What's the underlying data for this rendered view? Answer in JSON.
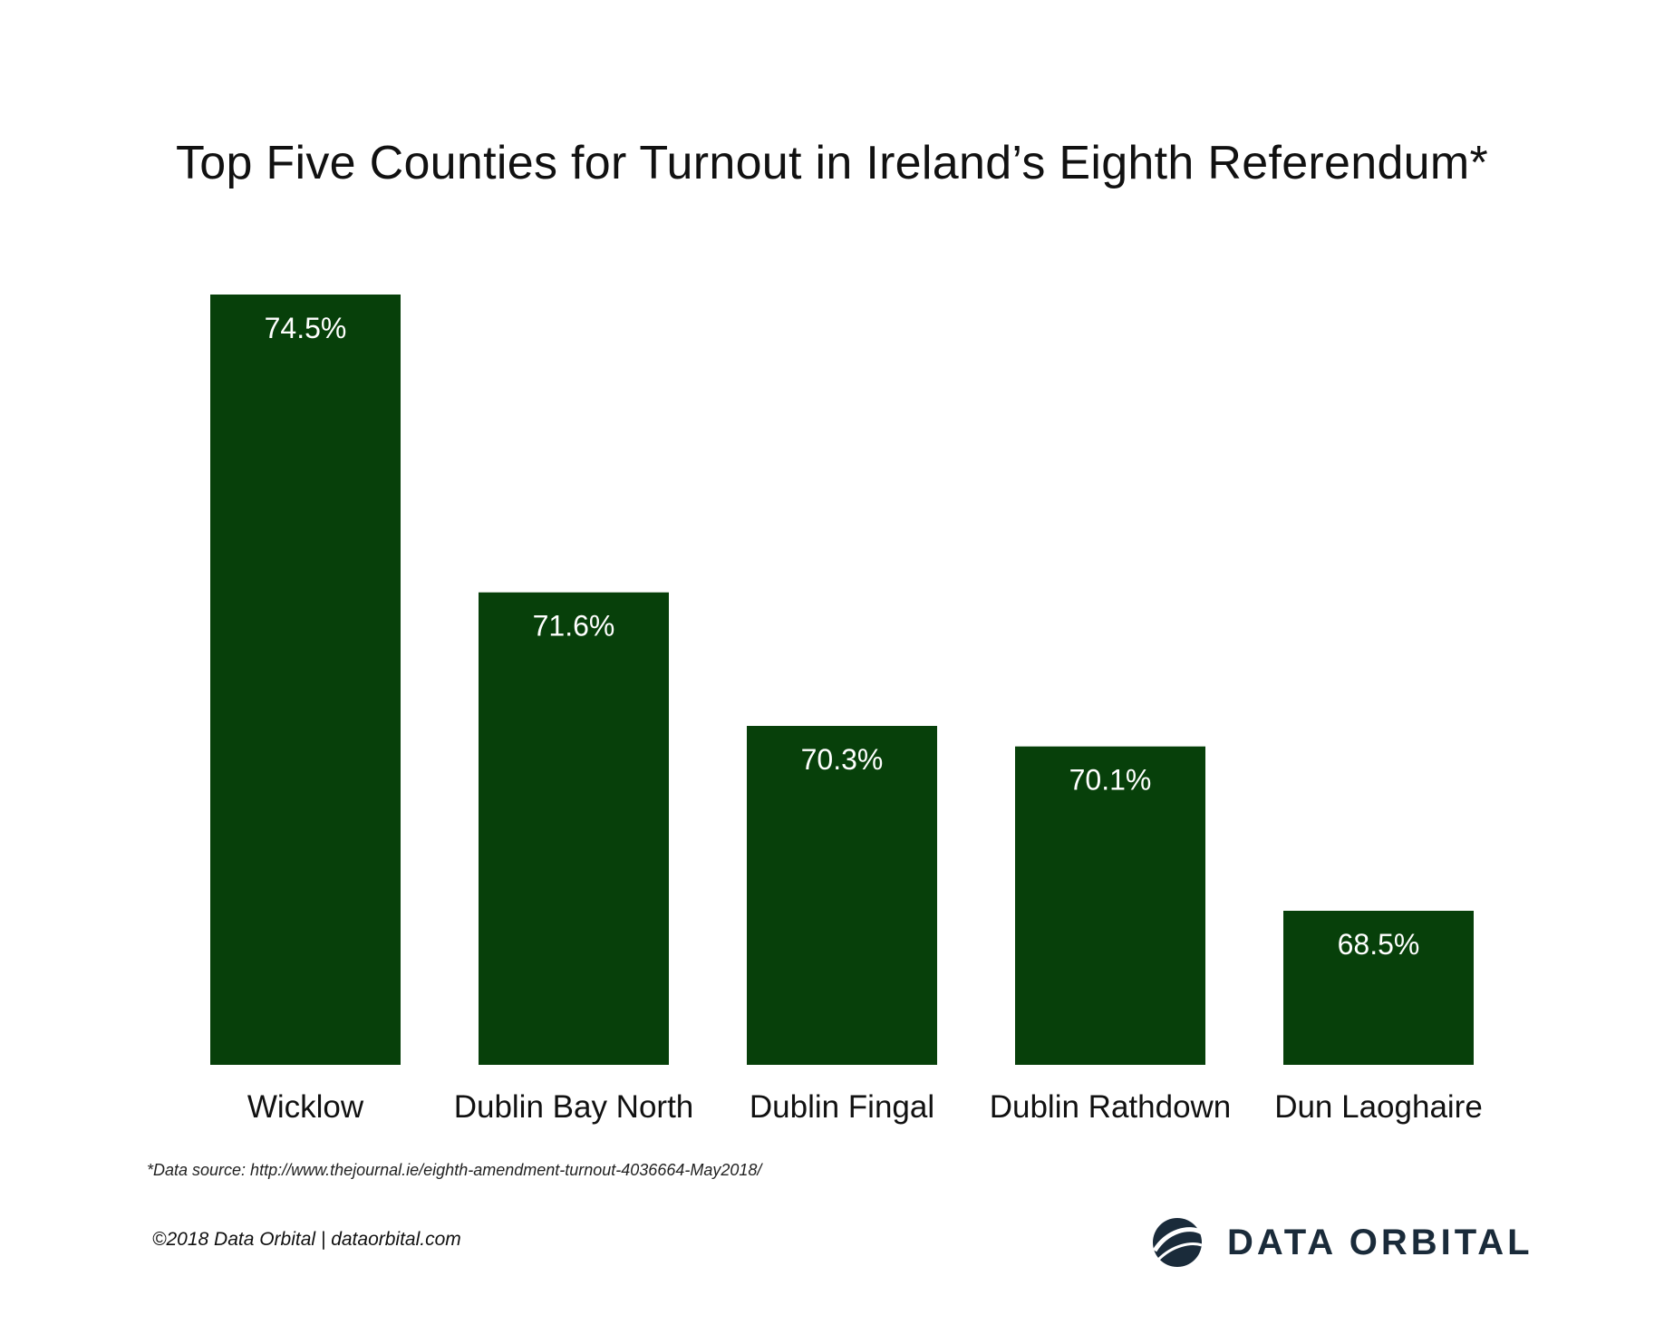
{
  "title": "Top Five Counties for Turnout in Ireland’s Eighth Referendum*",
  "source_note": "*Data source: http://www.thejournal.ie/eighth-amendment-turnout-4036664-May2018/",
  "copyright": "©2018 Data Orbital | dataorbital.com",
  "brand": {
    "name": "DATA ORBITAL",
    "logo_icon": "orbital-globe-icon",
    "color": "#1a2b3a"
  },
  "chart_data": {
    "type": "bar",
    "categories": [
      "Wicklow",
      "Dublin Bay North",
      "Dublin Fingal",
      "Dublin Rathdown",
      "Dun Laoghaire"
    ],
    "values": [
      74.5,
      71.6,
      70.3,
      70.1,
      68.5
    ],
    "value_labels": [
      "74.5%",
      "71.6%",
      "70.3%",
      "70.1%",
      "68.5%"
    ],
    "title": "Top Five Counties for Turnout in Ireland’s Eighth Referendum*",
    "xlabel": "",
    "ylabel": "",
    "ylim": [
      67.0,
      74.5
    ],
    "grid": false,
    "bar_color": "#07400a"
  }
}
